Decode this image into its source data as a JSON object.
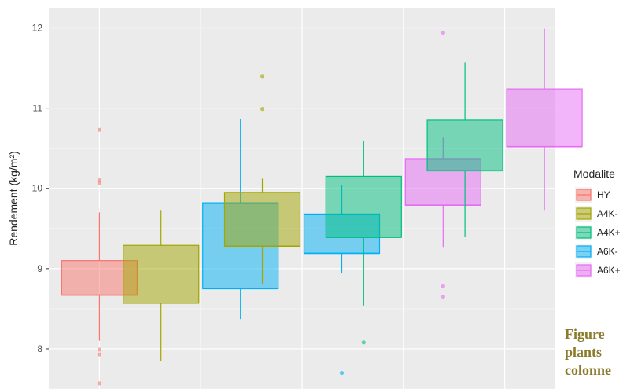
{
  "chart_data": {
    "type": "box",
    "ylabel": "Rendement (kg/m²)",
    "xlabel": "",
    "ylim": [
      7.5,
      12.25
    ],
    "yticks": [
      8,
      9,
      10,
      11,
      12
    ],
    "grid": true,
    "legend_title": "Modalite",
    "legend_position": "right",
    "categories": [
      "",
      "",
      "",
      "",
      ""
    ],
    "series": [
      {
        "name": "HY",
        "color": "#F8766D",
        "boxes": [
          {
            "cat": 0,
            "min": 8.1,
            "q1": 8.67,
            "median": 8.67,
            "q3": 9.1,
            "max": 9.7,
            "outliers": [
              10.73,
              10.1,
              10.07,
              7.99,
              7.93,
              7.57
            ]
          }
        ]
      },
      {
        "name": "A4K-",
        "color": "#A3A500",
        "boxes": [
          {
            "cat": 1,
            "min": 7.85,
            "q1": 8.57,
            "median": 8.57,
            "q3": 9.29,
            "max": 9.73,
            "outliers": []
          },
          {
            "cat": 2,
            "min": 8.81,
            "q1": 9.28,
            "median": 9.28,
            "q3": 9.95,
            "max": 10.12,
            "outliers": [
              11.4,
              10.99
            ]
          }
        ]
      },
      {
        "name": "A6K-",
        "color": "#00B0F6",
        "boxes": [
          {
            "cat": 1,
            "min": 8.37,
            "q1": 8.75,
            "median": 8.75,
            "q3": 9.82,
            "max": 10.86,
            "outliers": []
          },
          {
            "cat": 2,
            "min": 8.94,
            "q1": 9.19,
            "median": 9.19,
            "q3": 9.68,
            "max": 10.04,
            "outliers": [
              7.7
            ]
          }
        ]
      },
      {
        "name": "A4K+",
        "color": "#00BF7D",
        "boxes": [
          {
            "cat": 3,
            "min": 8.54,
            "q1": 9.39,
            "median": 9.39,
            "q3": 10.15,
            "max": 10.59,
            "outliers": [
              8.08
            ]
          },
          {
            "cat": 4,
            "min": 9.4,
            "q1": 10.22,
            "median": 10.22,
            "q3": 10.85,
            "max": 11.57,
            "outliers": []
          }
        ]
      },
      {
        "name": "A6K+",
        "color": "#E76BF3",
        "boxes": [
          {
            "cat": 3,
            "min": 9.27,
            "q1": 9.79,
            "median": 9.79,
            "q3": 10.37,
            "max": 10.64,
            "outliers": [
              11.94,
              8.78,
              8.65
            ]
          },
          {
            "cat": 4,
            "min": 9.73,
            "q1": 10.52,
            "median": 10.52,
            "q3": 11.24,
            "max": 11.99,
            "outliers": []
          }
        ]
      }
    ],
    "legend": [
      {
        "name": "HY",
        "color": "#F8766D"
      },
      {
        "name": "A4K-",
        "color": "#A3A500"
      },
      {
        "name": "A4K+",
        "color": "#00BF7D"
      },
      {
        "name": "A6K-",
        "color": "#00B0F6"
      },
      {
        "name": "A6K+",
        "color": "#E76BF3"
      }
    ]
  },
  "caption_lines": [
    "Figure",
    "plants",
    "colonne"
  ]
}
